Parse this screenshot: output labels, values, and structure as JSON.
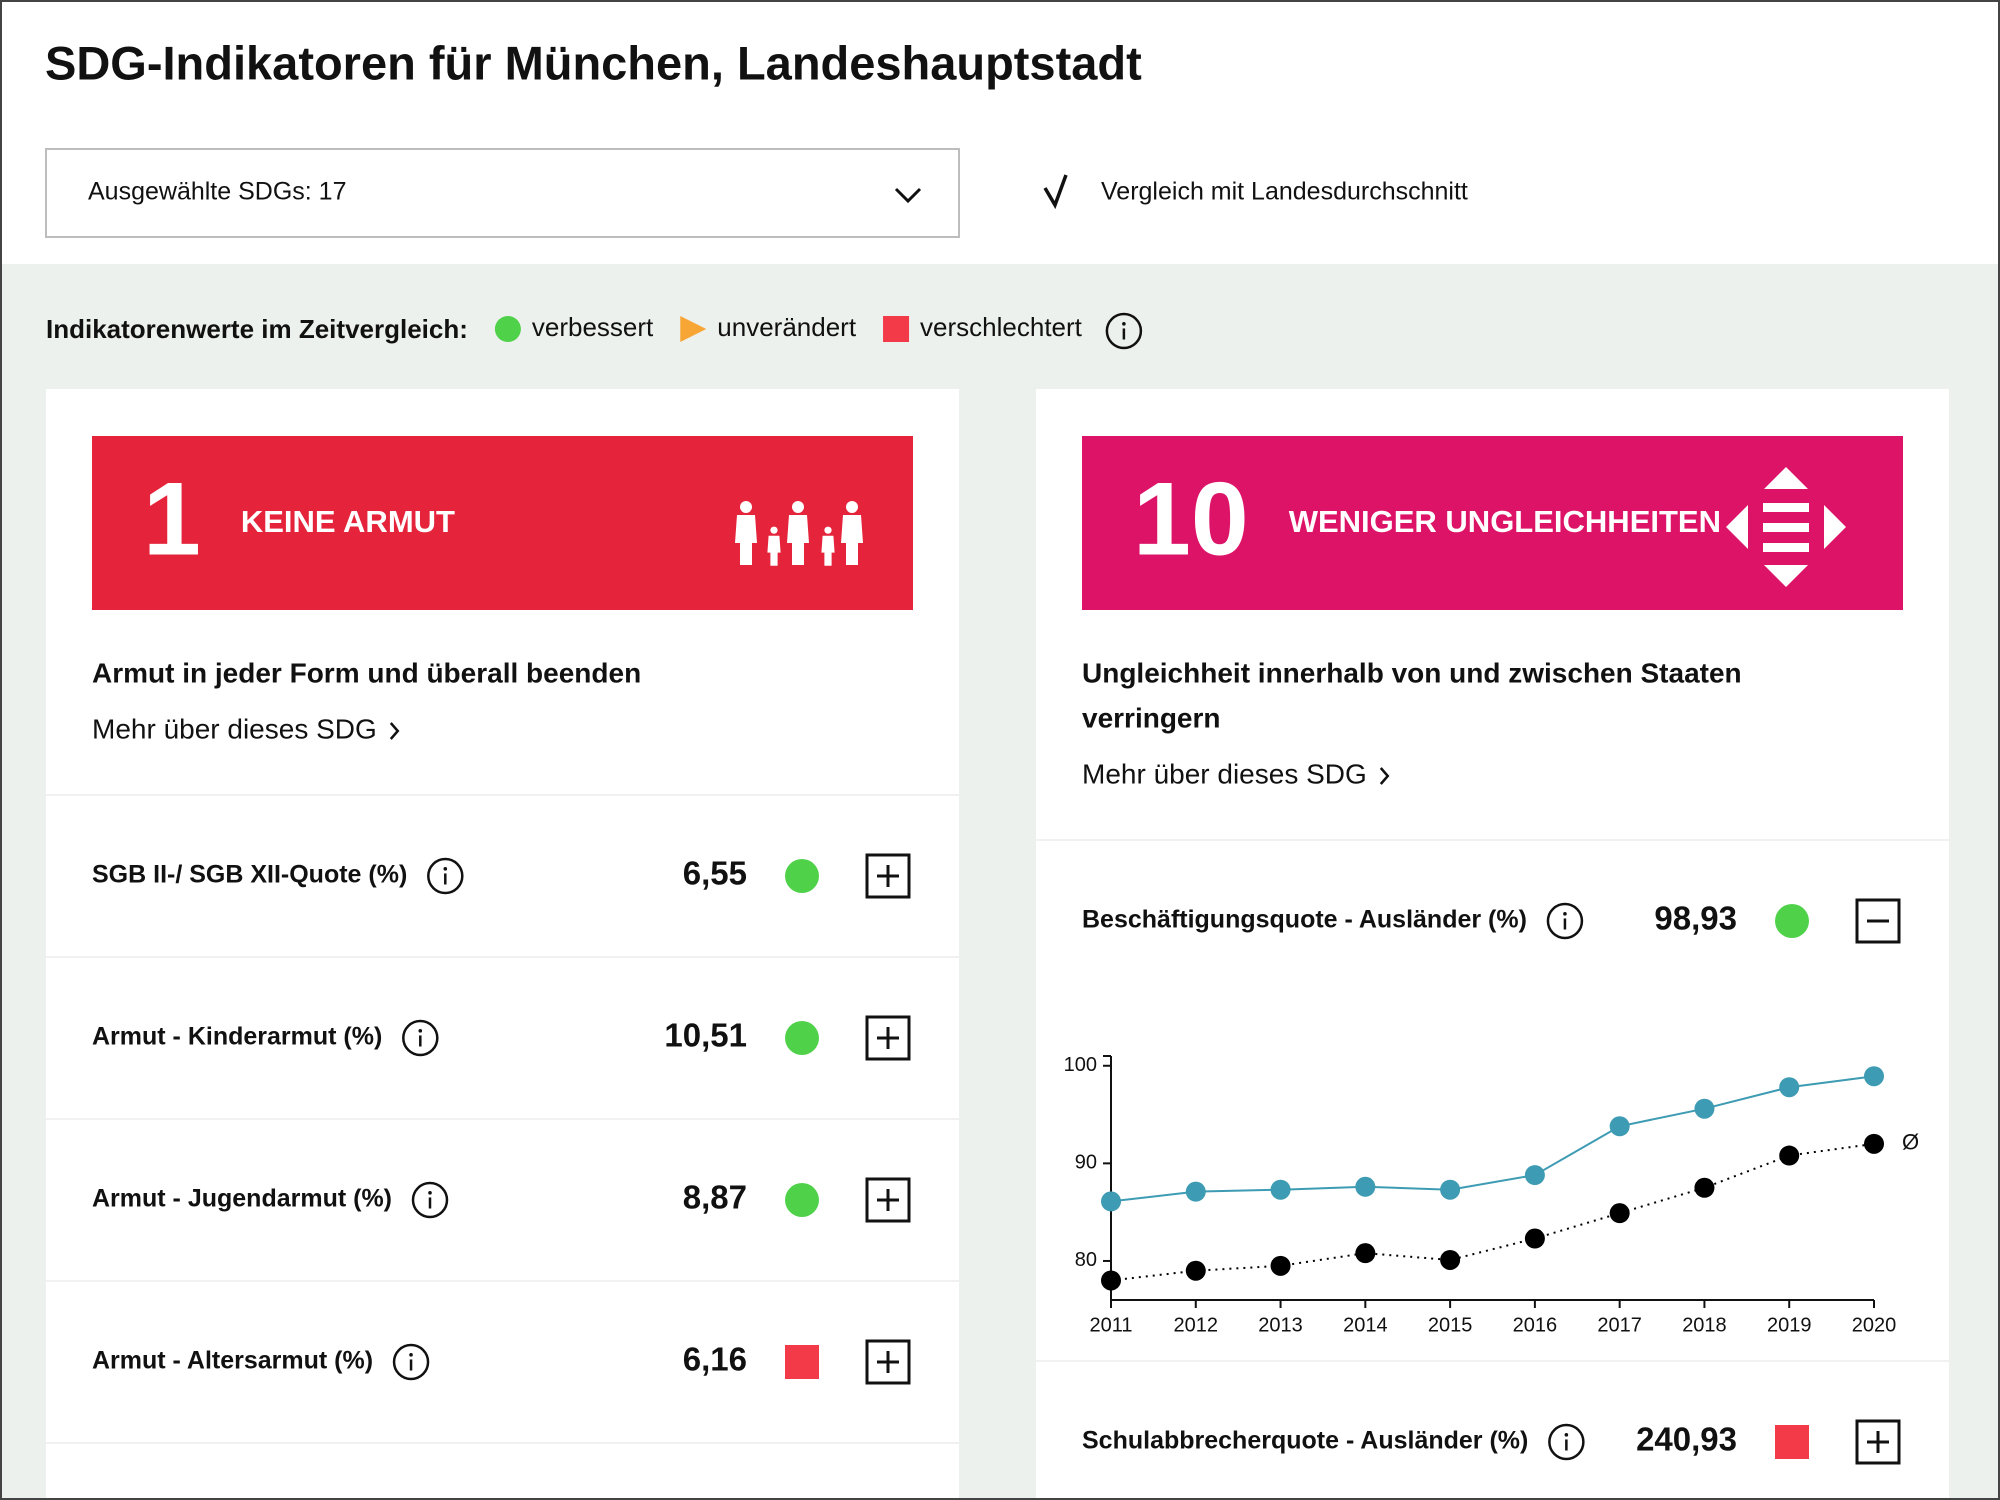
{
  "header": {
    "title": "SDG-Indikatoren für München, Landeshauptstadt",
    "selection": "Ausgewählte SDGs: 17",
    "comparison": "Vergleich mit Landesdurchschnitt",
    "comparison_checked": true
  },
  "legend": {
    "label": "Indikatorenwerte im Zeitvergleich:",
    "items": [
      {
        "label": "verbessert",
        "marker": "circle",
        "color": "#4fd14a"
      },
      {
        "label": "unverändert",
        "marker": "triangle",
        "color": "#f7a534"
      },
      {
        "label": "verschlechtert",
        "marker": "square",
        "color": "#f23a48"
      }
    ]
  },
  "sdgs": [
    {
      "number": "1",
      "title": "KEINE ARMUT",
      "color": "#e5243b",
      "icon": "family",
      "description": [
        "Armut in jeder Form und überall beenden"
      ],
      "link": "Mehr über dieses SDG",
      "indicators": [
        {
          "name": "SGB II-/ SGB XII-Quote (%)",
          "value": "6,55",
          "marker": "circle",
          "color": "#4fd14a",
          "expanded": false
        },
        {
          "name": "Armut - Kinderarmut (%)",
          "value": "10,51",
          "marker": "circle",
          "color": "#4fd14a",
          "expanded": false
        },
        {
          "name": "Armut - Jugendarmut (%)",
          "value": "8,87",
          "marker": "circle",
          "color": "#4fd14a",
          "expanded": false
        },
        {
          "name": "Armut - Altersarmut (%)",
          "value": "6,16",
          "marker": "square",
          "color": "#f23a48",
          "expanded": false
        }
      ]
    },
    {
      "number": "10",
      "title": "WENIGER UNGLEICHHEITEN",
      "color": "#dd1367",
      "icon": "arrows",
      "description": [
        "Ungleichheit innerhalb von und zwischen Staaten",
        "verringern"
      ],
      "link": "Mehr über dieses SDG",
      "indicators": [
        {
          "name": "Beschäftigungsquote - Ausländer (%)",
          "value": "98,93",
          "marker": "circle",
          "color": "#4fd14a",
          "expanded": true,
          "chart_data": {
            "type": "line",
            "categories": [
              "2011",
              "2012",
              "2013",
              "2014",
              "2015",
              "2016",
              "2017",
              "2018",
              "2019",
              "2020"
            ],
            "series": [
              {
                "color": "#3d9bb3",
                "values": [
                  86.1,
                  87.1,
                  87.3,
                  87.6,
                  87.3,
                  88.8,
                  93.8,
                  95.6,
                  97.8,
                  98.93
                ]
              },
              {
                "name": "Ø",
                "color": "#000000",
                "line_style": "dotted",
                "values": [
                  78.0,
                  79.0,
                  79.5,
                  80.8,
                  80.1,
                  82.3,
                  84.9,
                  87.5,
                  90.8,
                  92.0
                ]
              }
            ],
            "ylim": [
              76,
              101
            ],
            "yticks": [
              80,
              90,
              100
            ]
          }
        },
        {
          "name": "Schulabbrecherquote - Ausländer (%)",
          "value": "240,93",
          "marker": "square",
          "color": "#f23a48",
          "expanded": false
        }
      ]
    }
  ]
}
